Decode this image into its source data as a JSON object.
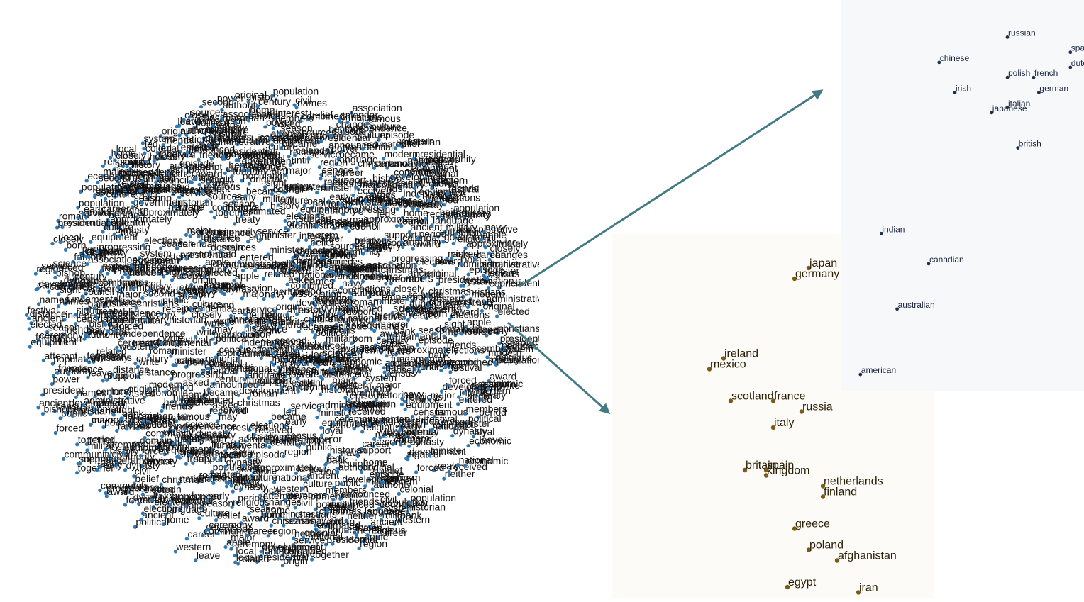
{
  "colors": {
    "cloud_point": "#2f78b4",
    "cloud_text": "#111111",
    "arrow": "#447a85",
    "country_point": "#7a5a14",
    "country_text": "#2a1f05",
    "nationality_point": "#1f2f4f",
    "nationality_text": "#1a2540"
  },
  "cloud_words": [
    "friends",
    "related",
    "closely",
    "heritage",
    "loyal",
    "changes",
    "interest",
    "fundamental",
    "belief",
    "christmas",
    "names",
    "progressing",
    "sight",
    "neither",
    "asked",
    "distance",
    "theorem",
    "administrative",
    "original",
    "population",
    "equipment",
    "attempt",
    "leave",
    "combined",
    "domain",
    "festival",
    "calendar",
    "community",
    "christians",
    "roman",
    "colonial",
    "civil",
    "navy",
    "forced",
    "led",
    "home",
    "together",
    "entered",
    "independence",
    "president",
    "historian",
    "episode",
    "season",
    "bishop",
    "emperor",
    "apple",
    "may",
    "write",
    "elected",
    "members",
    "bank",
    "dynasty",
    "population",
    "estimated",
    "approximately",
    "born",
    "census",
    "announced",
    "presidential",
    "until",
    "association",
    "national",
    "award",
    "century",
    "government",
    "military",
    "political",
    "ceremony",
    "treaty",
    "elections",
    "ancient",
    "religious",
    "authority",
    "sources",
    "development",
    "language",
    "culture",
    "economic",
    "history",
    "support",
    "received",
    "council",
    "minister",
    "period",
    "second",
    "became",
    "early",
    "famous",
    "region",
    "career",
    "system",
    "science",
    "origin",
    "modern",
    "major",
    "local",
    "public",
    "service",
    "power",
    "western"
  ],
  "chart_data": [
    {
      "type": "scatter",
      "series": [
        {
          "points": [
            {
              "x": 0.2,
              "y": 0.2,
              "label": "japan"
            },
            {
              "x": 0.0,
              "y": 0.4,
              "label": "germany"
            },
            {
              "x": -1.0,
              "y": 1.9,
              "label": "ireland"
            },
            {
              "x": -1.2,
              "y": 2.1,
              "label": "mexico"
            },
            {
              "x": -0.9,
              "y": 2.7,
              "label": "scotland"
            },
            {
              "x": -0.3,
              "y": 2.7,
              "label": "france"
            },
            {
              "x": 0.1,
              "y": 2.9,
              "label": "russia"
            },
            {
              "x": -0.3,
              "y": 3.2,
              "label": "italy"
            },
            {
              "x": -0.7,
              "y": 4.0,
              "label": "britain"
            },
            {
              "x": -0.4,
              "y": 4.0,
              "label": "spain"
            },
            {
              "x": -0.4,
              "y": 4.1,
              "label": "kingdom"
            },
            {
              "x": 0.4,
              "y": 4.3,
              "label": "netherlands"
            },
            {
              "x": 0.4,
              "y": 4.5,
              "label": "finland"
            },
            {
              "x": 0.0,
              "y": 5.1,
              "label": "greece"
            },
            {
              "x": 0.2,
              "y": 5.5,
              "label": "poland"
            },
            {
              "x": 0.6,
              "y": 5.7,
              "label": "afghanistan"
            },
            {
              "x": -0.1,
              "y": 6.2,
              "label": "egypt"
            },
            {
              "x": 0.9,
              "y": 6.3,
              "label": "iran"
            }
          ]
        }
      ]
    },
    {
      "type": "scatter",
      "series": [
        {
          "points": [
            {
              "x": 3.0,
              "y": 0.4,
              "label": "russian"
            },
            {
              "x": 4.2,
              "y": 0.7,
              "label": "spanish"
            },
            {
              "x": 1.7,
              "y": 0.9,
              "label": "chinese"
            },
            {
              "x": 4.2,
              "y": 1.0,
              "label": "dutch"
            },
            {
              "x": 3.0,
              "y": 1.2,
              "label": "polish"
            },
            {
              "x": 3.5,
              "y": 1.2,
              "label": "french"
            },
            {
              "x": 2.0,
              "y": 1.5,
              "label": "irish"
            },
            {
              "x": 3.6,
              "y": 1.5,
              "label": "german"
            },
            {
              "x": 3.0,
              "y": 1.8,
              "label": "italian"
            },
            {
              "x": 2.7,
              "y": 1.9,
              "label": "japanese"
            },
            {
              "x": 3.2,
              "y": 2.6,
              "label": "british"
            },
            {
              "x": 0.6,
              "y": 4.3,
              "label": "indian"
            },
            {
              "x": 1.5,
              "y": 4.9,
              "label": "canadian"
            },
            {
              "x": 0.9,
              "y": 5.8,
              "label": "australian"
            },
            {
              "x": 0.2,
              "y": 7.1,
              "label": "american"
            }
          ]
        }
      ]
    }
  ]
}
